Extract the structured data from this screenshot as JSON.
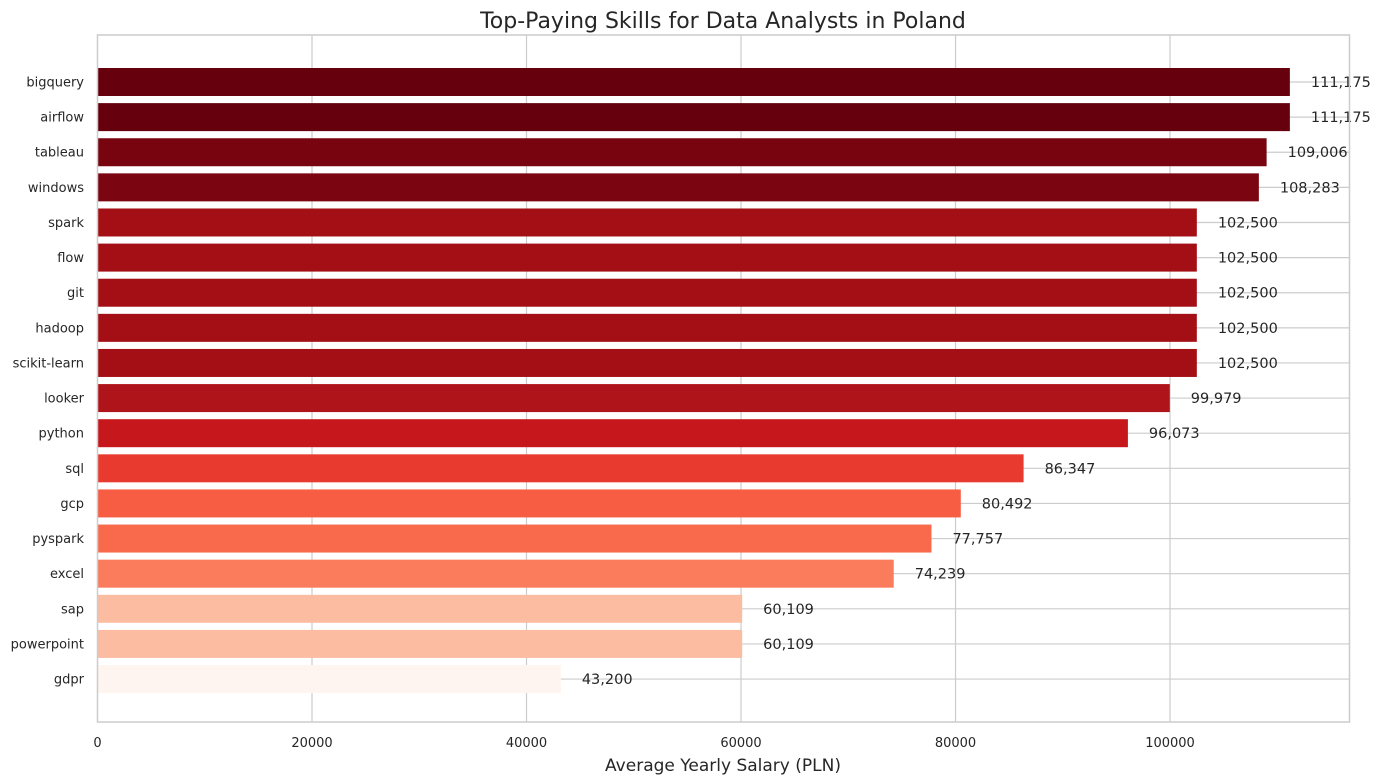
{
  "chart_data": {
    "type": "bar",
    "orientation": "horizontal",
    "title": "Top-Paying Skills for Data Analysts in Poland",
    "xlabel": "Average Yearly Salary (PLN)",
    "ylabel": "",
    "xlim": [
      0,
      116734
    ],
    "xticks": [
      0,
      20000,
      40000,
      60000,
      80000,
      100000
    ],
    "xtick_labels": [
      "0",
      "20000",
      "40000",
      "60000",
      "80000",
      "100000"
    ],
    "grid": true,
    "colormap": "Reds",
    "categories": [
      "bigquery",
      "airflow",
      "tableau",
      "windows",
      "spark",
      "flow",
      "git",
      "hadoop",
      "scikit-learn",
      "looker",
      "python",
      "sql",
      "gcp",
      "pyspark",
      "excel",
      "sap",
      "powerpoint",
      "gdpr"
    ],
    "values": [
      111175,
      111175,
      109006,
      108283,
      102500,
      102500,
      102500,
      102500,
      102500,
      99979,
      96073,
      86347,
      80492,
      77757,
      74239,
      60109,
      60109,
      43200
    ],
    "value_labels": [
      "111,175",
      "111,175",
      "109,006",
      "108,283",
      "102,500",
      "102,500",
      "102,500",
      "102,500",
      "102,500",
      "99,979",
      "96,073",
      "86,347",
      "80,492",
      "77,757",
      "74,239",
      "60,109",
      "60,109",
      "43,200"
    ],
    "colors": [
      "#67000d",
      "#67000d",
      "#77040f",
      "#7b0510",
      "#a30f15",
      "#a30f15",
      "#a30f15",
      "#a30f15",
      "#a30f15",
      "#b0141b",
      "#c5171c",
      "#e83a2e",
      "#f65d42",
      "#f96a4c",
      "#fb7c5c",
      "#fbbca1",
      "#fbbca1",
      "#fff5f0"
    ]
  }
}
